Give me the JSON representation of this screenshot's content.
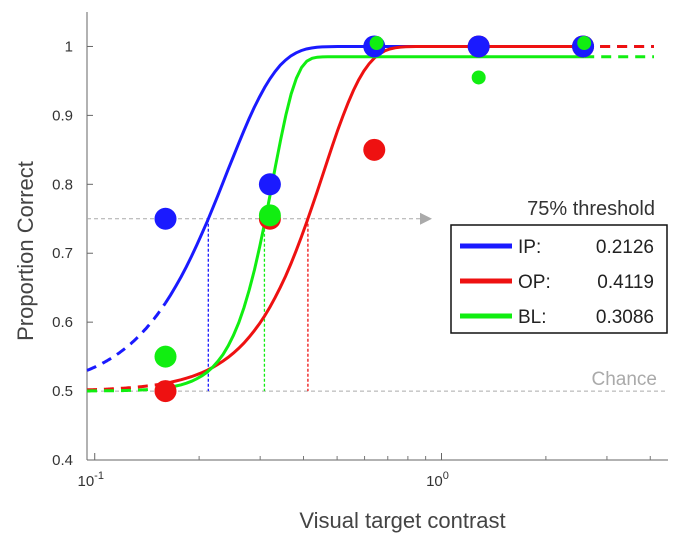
{
  "chart_data": {
    "type": "scatter",
    "xlabel": "Visual target contrast",
    "ylabel": "Proportion Correct",
    "x_scale": "log",
    "xlim": [
      0.095,
      4.5
    ],
    "ylim": [
      0.4,
      1.05
    ],
    "x_ticks": [
      {
        "value": 0.1,
        "base": "10",
        "exp": "-1"
      },
      {
        "value": 1,
        "base": "10",
        "exp": "0"
      }
    ],
    "y_ticks": [
      0.4,
      0.5,
      0.6,
      0.7,
      0.8,
      0.9,
      1
    ],
    "y_tick_labels": [
      "0.4",
      "0.5",
      "0.6",
      "0.7",
      "0.8",
      "0.9",
      "1"
    ],
    "grid": false,
    "chance": {
      "label": "Chance",
      "value": 0.5
    },
    "threshold_level": 0.75,
    "legend": {
      "title": "75% threshold",
      "placement": "right"
    },
    "series": [
      {
        "name": "IP:",
        "threshold_label": "0.2126",
        "threshold": 0.2126,
        "color": "#1a1aff",
        "x": [
          0.16,
          0.32,
          0.64,
          1.28,
          2.56
        ],
        "y": [
          0.75,
          0.8,
          1.0,
          1.0,
          1.0
        ],
        "fit": {
          "lower": 0.5,
          "upper": 1.0,
          "slope": 3.0,
          "ms_at": 0.2126
        }
      },
      {
        "name": "OP:",
        "threshold_label": "0.4119",
        "threshold": 0.4119,
        "color": "#ee1111",
        "x": [
          0.16,
          0.32,
          0.64,
          1.28,
          2.56
        ],
        "y": [
          0.5,
          0.75,
          0.85,
          1.0,
          1.0
        ],
        "fit": {
          "lower": 0.5,
          "upper": 1.0,
          "slope": 3.6,
          "ms_at": 0.4119
        }
      },
      {
        "name": "BL:",
        "threshold_label": "0.3086",
        "threshold": 0.3086,
        "color": "#11ee11",
        "x": [
          0.16,
          0.32,
          0.65,
          1.28,
          2.58
        ],
        "y": [
          0.55,
          0.755,
          1.005,
          0.955,
          1.005
        ],
        "fit": {
          "lower": 0.5,
          "upper": 0.985,
          "slope": 6.5,
          "ms_at": 0.3086
        }
      }
    ]
  }
}
